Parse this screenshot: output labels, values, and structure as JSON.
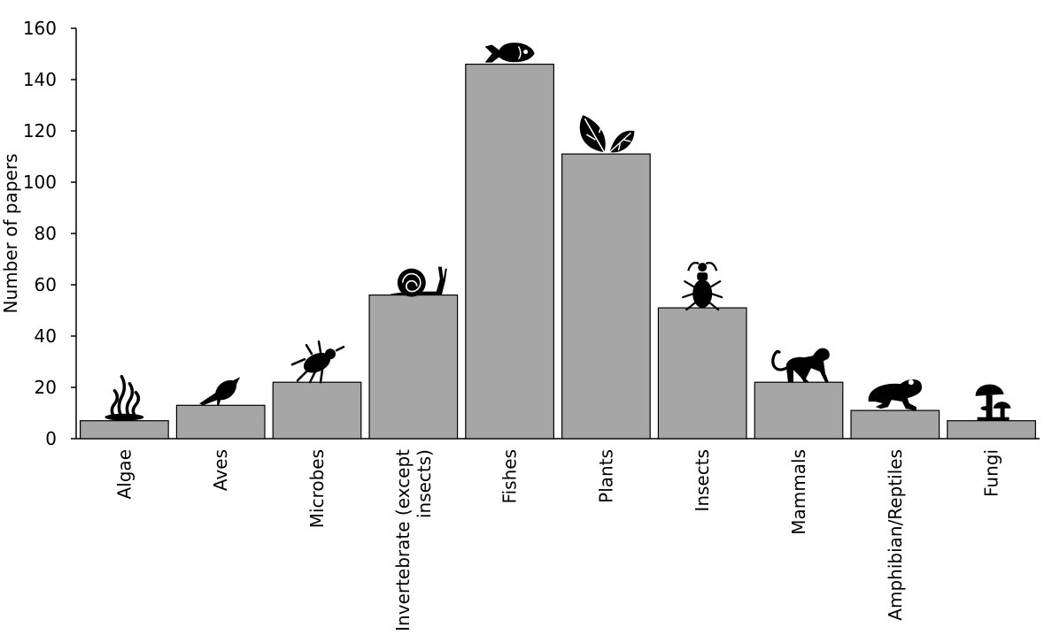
{
  "chart_data": {
    "type": "bar",
    "title": "",
    "xlabel": "",
    "ylabel": "Number of papers",
    "ylim": [
      0,
      160
    ],
    "yticks": [
      0,
      20,
      40,
      60,
      80,
      100,
      120,
      140,
      160
    ],
    "categories": [
      "Algae",
      "Aves",
      "Microbes",
      "Invertebrate (except insects)",
      "Fishes",
      "Plants",
      "Insects",
      "Mammals",
      "Amphibian/Reptiles",
      "Fungi"
    ],
    "category_label_lines": [
      [
        "Algae"
      ],
      [
        "Aves"
      ],
      [
        "Microbes"
      ],
      [
        "Invertebrate (except",
        "insects)"
      ],
      [
        "Fishes"
      ],
      [
        "Plants"
      ],
      [
        "Insects"
      ],
      [
        "Mammals"
      ],
      [
        "Amphibian/Reptiles"
      ],
      [
        "Fungi"
      ]
    ],
    "values": [
      7,
      13,
      22,
      56,
      146,
      111,
      51,
      22,
      11,
      7
    ],
    "icons": [
      "seaweed-icon",
      "bird-icon",
      "mite-icon",
      "snail-icon",
      "fish-icon",
      "leaf-icon",
      "beetle-icon",
      "monkey-icon",
      "frog-icon",
      "mushroom-icon"
    ],
    "bar_color": "#a6a6a6",
    "bar_edge_color": "#000000",
    "grid": false,
    "legend": "none"
  }
}
